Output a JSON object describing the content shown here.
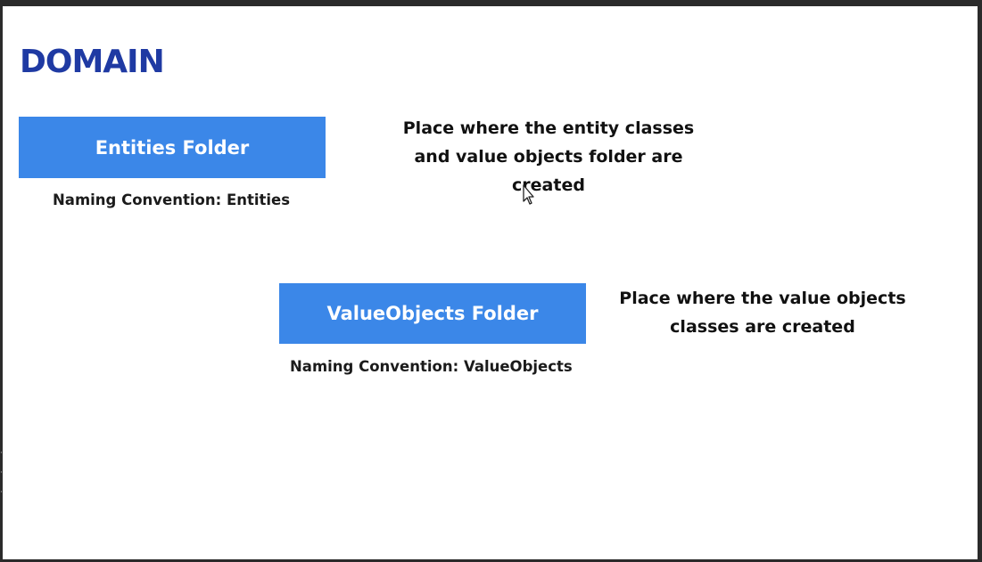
{
  "slide": {
    "title": "DOMAIN",
    "entities": {
      "box_label": "Entities Folder",
      "naming_convention": "Naming Convention: Entities",
      "description": "Place where the entity classes\nand value objects folder are\ncreated"
    },
    "value_objects": {
      "box_label": "ValueObjects Folder",
      "naming_convention": "Naming Convention: ValueObjects",
      "description": "Place where the value objects\nclasses are created"
    }
  },
  "colors": {
    "title": "#1f3aa3",
    "box": "#3b87e8",
    "background": "#ffffff",
    "frame": "#2b2b2b"
  },
  "icons": {
    "cursor": "pointer-cursor-icon"
  }
}
